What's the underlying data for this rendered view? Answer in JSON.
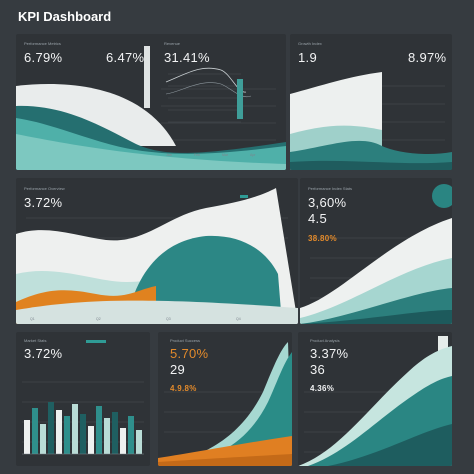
{
  "header": {
    "title": "KPI Dashboard"
  },
  "colors": {
    "teal": "#2f8f8c",
    "dark_teal": "#1f5f61",
    "light_teal": "#8fcbc4",
    "white": "#f2f3f1",
    "orange": "#e07f22",
    "background": "#363b40",
    "panel": "#2f3337"
  },
  "panels": {
    "p1": {
      "kpi_left": "6.79%",
      "kpi_right": "6.47%"
    },
    "p2": {
      "kpi": "31.41%"
    },
    "p3": {
      "kpi_left": "1.9",
      "kpi_right": "8.97%"
    },
    "p4": {
      "kpi": "3.72%"
    },
    "p5": {
      "kpi_1": "3,60%",
      "kpi_2": "4.5",
      "kpi_3": "38.80%"
    },
    "p6": {
      "kpi": "3.72%"
    },
    "p7": {
      "kpi_1": "5.70%",
      "kpi_2": "29",
      "kpi_3": "4.9.8%"
    },
    "p8": {
      "kpi_1": "3.37%",
      "kpi_2": "36",
      "kpi_3": "4.36%"
    }
  }
}
